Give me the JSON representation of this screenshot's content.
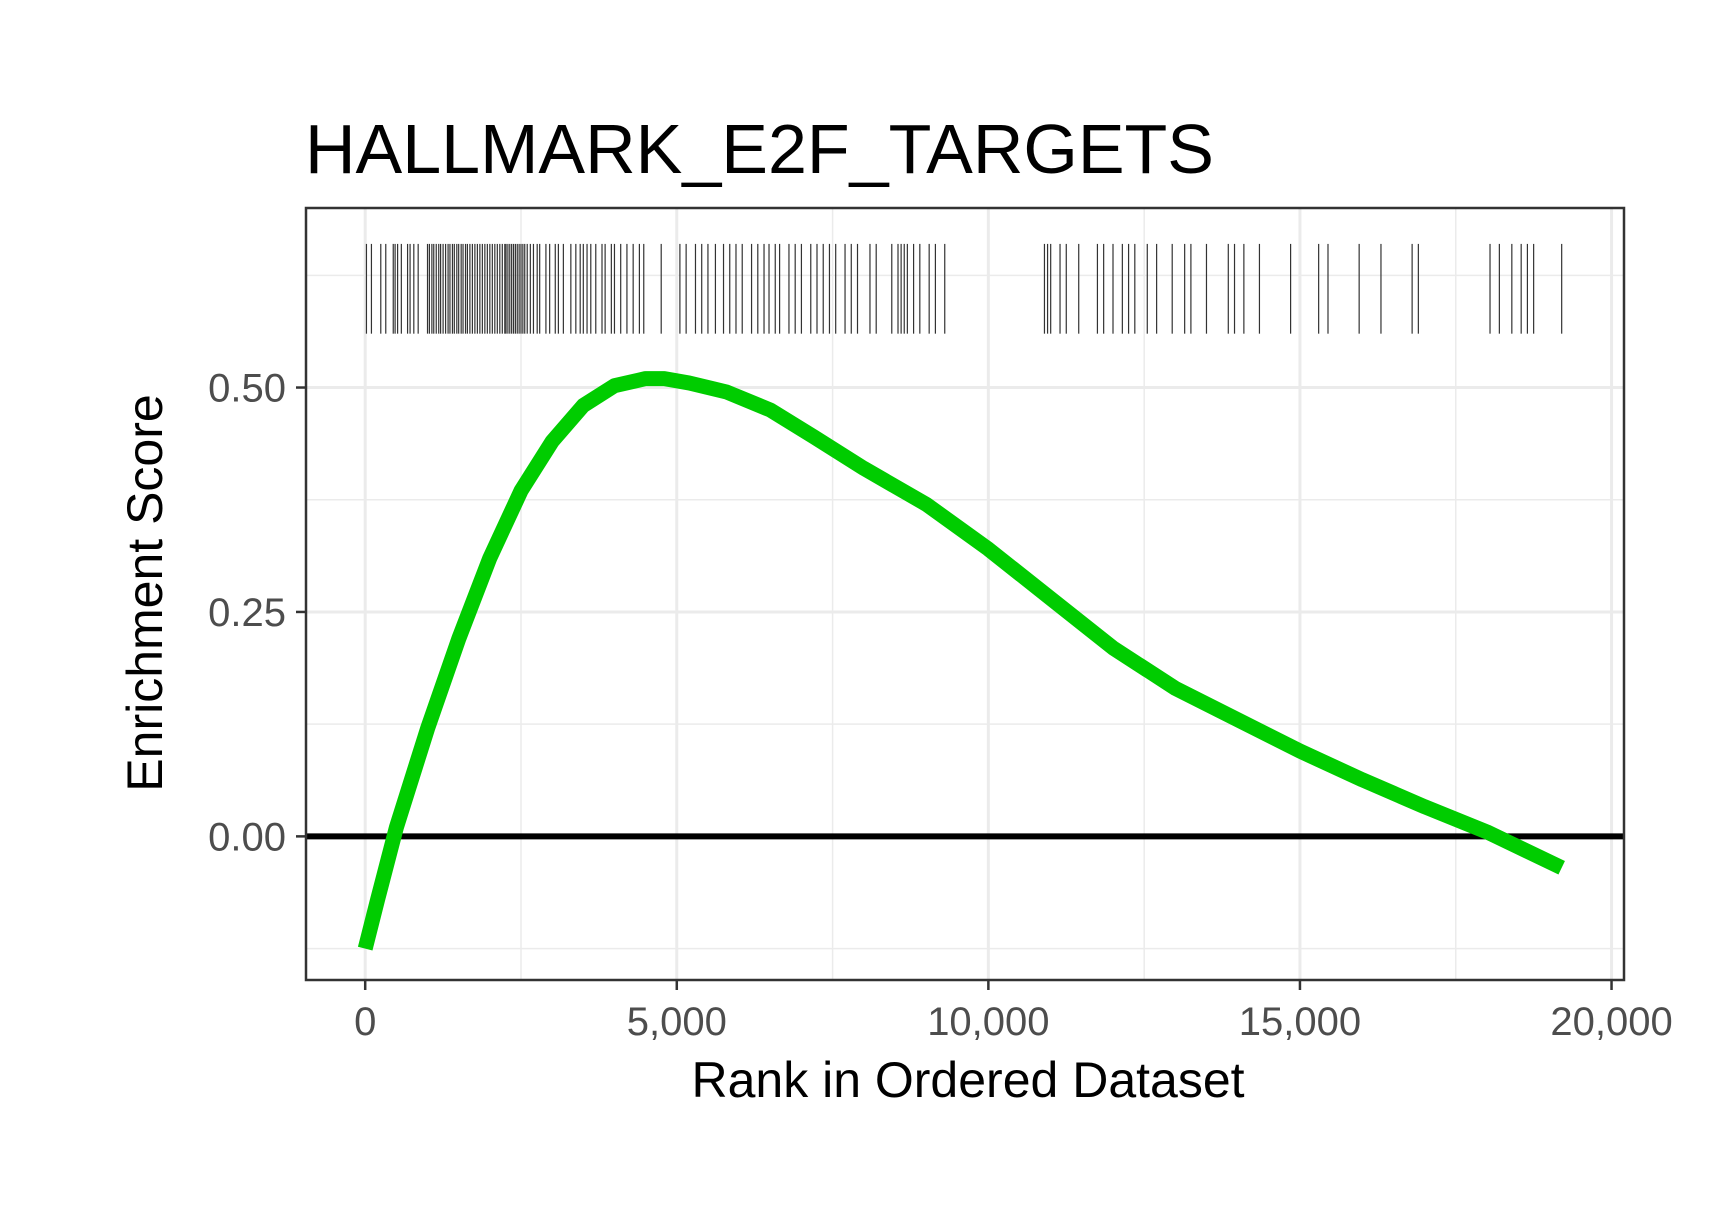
{
  "chart_data": {
    "type": "line",
    "title": "HALLMARK_E2F_TARGETS",
    "xlabel": "Rank in Ordered Dataset",
    "ylabel": "Enrichment Score",
    "xlim": [
      -950,
      20200
    ],
    "ylim": [
      -0.16,
      0.7
    ],
    "x_ticks": [
      0,
      5000,
      10000,
      15000,
      20000
    ],
    "x_tick_labels": [
      "0",
      "5,000",
      "10,000",
      "15,000",
      "20,000"
    ],
    "y_ticks": [
      0.0,
      0.25,
      0.5
    ],
    "y_tick_labels": [
      "0.00",
      "0.25",
      "0.50"
    ],
    "y_minor_ticks": [
      -0.125,
      0.125,
      0.375,
      0.625
    ],
    "x_minor_ticks": [
      2500,
      7500,
      12500,
      17500
    ],
    "grid": true,
    "hline": 0,
    "series": [
      {
        "color": "#00cc00",
        "x": [
          0,
          200,
          500,
          1000,
          1500,
          2000,
          2500,
          3000,
          3500,
          4000,
          4500,
          4800,
          5200,
          5800,
          6500,
          7200,
          8000,
          9000,
          10000,
          11000,
          12000,
          13000,
          14000,
          15000,
          16000,
          17000,
          18000,
          19200
        ],
        "y": [
          -0.125,
          -0.07,
          0.01,
          0.12,
          0.22,
          0.31,
          0.385,
          0.44,
          0.48,
          0.502,
          0.51,
          0.51,
          0.505,
          0.495,
          0.475,
          0.445,
          0.41,
          0.37,
          0.32,
          0.265,
          0.21,
          0.165,
          0.13,
          0.095,
          0.063,
          0.033,
          0.005,
          -0.035
        ]
      }
    ],
    "gene_hits": {
      "color": "#333333",
      "y_range": [
        0.56,
        0.66
      ],
      "x": [
        20,
        100,
        250,
        330,
        450,
        480,
        520,
        580,
        680,
        720,
        780,
        850,
        1000,
        1030,
        1070,
        1100,
        1140,
        1180,
        1210,
        1250,
        1290,
        1330,
        1360,
        1400,
        1430,
        1470,
        1500,
        1540,
        1570,
        1610,
        1640,
        1680,
        1720,
        1760,
        1800,
        1840,
        1880,
        1920,
        1960,
        2000,
        2040,
        2080,
        2120,
        2160,
        2200,
        2240,
        2260,
        2290,
        2320,
        2350,
        2380,
        2410,
        2440,
        2470,
        2500,
        2530,
        2560,
        2600,
        2650,
        2700,
        2760,
        2800,
        2900,
        2960,
        3050,
        3100,
        3180,
        3300,
        3380,
        3450,
        3500,
        3560,
        3620,
        3700,
        3800,
        3850,
        3950,
        4000,
        4100,
        4200,
        4300,
        4400,
        4470,
        4750,
        5050,
        5150,
        5300,
        5400,
        5500,
        5620,
        5750,
        5850,
        5950,
        6050,
        6200,
        6300,
        6400,
        6480,
        6580,
        6650,
        6800,
        6900,
        7000,
        7150,
        7250,
        7350,
        7450,
        7550,
        7700,
        7800,
        7900,
        8100,
        8200,
        8450,
        8550,
        8600,
        8650,
        8700,
        8800,
        8900,
        9050,
        9150,
        9300,
        10900,
        10950,
        11000,
        11150,
        11250,
        11450,
        11750,
        11850,
        12000,
        12150,
        12250,
        12350,
        12550,
        12700,
        12950,
        13150,
        13250,
        13500,
        13850,
        13950,
        14100,
        14350,
        14850,
        15300,
        15450,
        15950,
        16300,
        16800,
        16900,
        18050,
        18200,
        18400,
        18550,
        18650,
        18750,
        19200
      ]
    }
  }
}
